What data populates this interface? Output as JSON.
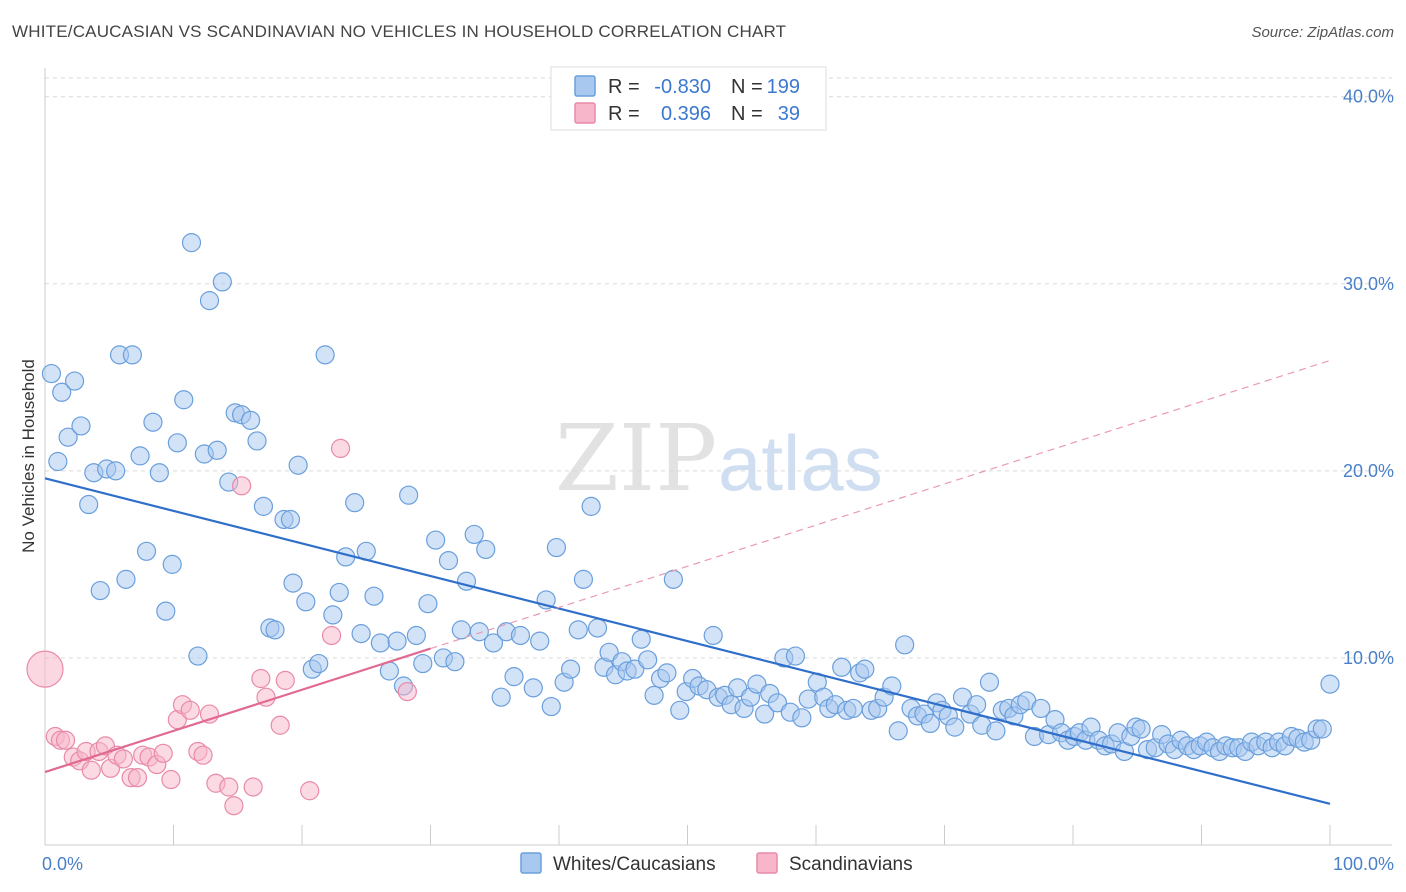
{
  "chart_data": {
    "type": "scatter",
    "title": "WHITE/CAUCASIAN VS SCANDINAVIAN NO VEHICLES IN HOUSEHOLD CORRELATION CHART",
    "source": "Source: ZipAtlas.com",
    "watermark": {
      "zip": "ZIP",
      "atlas": "atlas"
    },
    "ylabel": "No Vehicles in Household",
    "xlim": [
      0,
      100
    ],
    "ylim": [
      0,
      41
    ],
    "x_tick_labels": [
      {
        "value": 0,
        "label": "0.0%"
      },
      {
        "value": 100,
        "label": "100.0%"
      }
    ],
    "y_tick_labels": [
      {
        "value": 10,
        "label": "10.0%"
      },
      {
        "value": 20,
        "label": "20.0%"
      },
      {
        "value": 30,
        "label": "30.0%"
      },
      {
        "value": 40,
        "label": "40.0%"
      }
    ],
    "grid": true,
    "legend": {
      "position": "top-center",
      "entries": [
        {
          "r_label": "R =",
          "r_value": "-0.830",
          "n_label": "N =",
          "n_value": "199"
        },
        {
          "r_label": "R =",
          "r_value": "0.396",
          "n_label": "N =",
          "n_value": "39"
        }
      ]
    },
    "series": [
      {
        "name": "Whites/Caucasians",
        "color": "#a8c8f0",
        "stroke": "#6a9fdc",
        "trend": {
          "x": [
            0,
            100
          ],
          "y": [
            19.6,
            2.2
          ],
          "color": "#2f6fc9"
        },
        "points": [
          [
            0.5,
            25.2
          ],
          [
            1.0,
            20.5
          ],
          [
            1.3,
            24.2
          ],
          [
            1.8,
            21.8
          ],
          [
            2.3,
            24.8
          ],
          [
            2.8,
            22.4
          ],
          [
            3.4,
            18.2
          ],
          [
            3.8,
            19.9
          ],
          [
            4.3,
            13.6
          ],
          [
            4.8,
            20.1
          ],
          [
            5.5,
            20.0
          ],
          [
            5.8,
            26.2
          ],
          [
            6.3,
            14.2
          ],
          [
            6.8,
            26.2
          ],
          [
            7.4,
            20.8
          ],
          [
            7.9,
            15.7
          ],
          [
            8.4,
            22.6
          ],
          [
            8.9,
            19.9
          ],
          [
            9.4,
            12.5
          ],
          [
            9.9,
            15.0
          ],
          [
            10.3,
            21.5
          ],
          [
            10.8,
            23.8
          ],
          [
            11.4,
            32.2
          ],
          [
            11.9,
            10.1
          ],
          [
            12.4,
            20.9
          ],
          [
            12.8,
            29.1
          ],
          [
            13.4,
            21.1
          ],
          [
            13.8,
            30.1
          ],
          [
            14.3,
            19.4
          ],
          [
            14.8,
            23.1
          ],
          [
            15.3,
            23.0
          ],
          [
            16.0,
            22.7
          ],
          [
            16.5,
            21.6
          ],
          [
            17.0,
            18.1
          ],
          [
            17.5,
            11.6
          ],
          [
            17.9,
            11.5
          ],
          [
            18.6,
            17.4
          ],
          [
            19.1,
            17.4
          ],
          [
            19.3,
            14.0
          ],
          [
            19.7,
            20.3
          ],
          [
            20.3,
            13.0
          ],
          [
            20.8,
            9.4
          ],
          [
            21.3,
            9.7
          ],
          [
            21.8,
            26.2
          ],
          [
            22.4,
            12.3
          ],
          [
            22.9,
            13.5
          ],
          [
            23.4,
            15.4
          ],
          [
            24.1,
            18.3
          ],
          [
            24.6,
            11.3
          ],
          [
            25.0,
            15.7
          ],
          [
            25.6,
            13.3
          ],
          [
            26.1,
            10.8
          ],
          [
            26.8,
            9.3
          ],
          [
            27.4,
            10.9
          ],
          [
            27.9,
            8.5
          ],
          [
            28.3,
            18.7
          ],
          [
            28.9,
            11.2
          ],
          [
            29.4,
            9.7
          ],
          [
            29.8,
            12.9
          ],
          [
            30.4,
            16.3
          ],
          [
            31.0,
            10.0
          ],
          [
            31.4,
            15.2
          ],
          [
            31.9,
            9.8
          ],
          [
            32.4,
            11.5
          ],
          [
            32.8,
            14.1
          ],
          [
            33.4,
            16.6
          ],
          [
            33.8,
            11.4
          ],
          [
            34.3,
            15.8
          ],
          [
            34.9,
            10.8
          ],
          [
            35.5,
            7.9
          ],
          [
            35.9,
            11.4
          ],
          [
            36.5,
            9.0
          ],
          [
            37.0,
            11.2
          ],
          [
            38.0,
            8.4
          ],
          [
            38.5,
            10.9
          ],
          [
            39.0,
            13.1
          ],
          [
            39.4,
            7.4
          ],
          [
            39.8,
            15.9
          ],
          [
            40.4,
            8.7
          ],
          [
            40.9,
            9.4
          ],
          [
            41.5,
            11.5
          ],
          [
            41.9,
            14.2
          ],
          [
            42.5,
            18.1
          ],
          [
            43.0,
            11.6
          ],
          [
            43.5,
            9.5
          ],
          [
            43.9,
            10.3
          ],
          [
            44.4,
            9.1
          ],
          [
            44.9,
            9.8
          ],
          [
            45.3,
            9.3
          ],
          [
            45.9,
            9.4
          ],
          [
            46.4,
            11.0
          ],
          [
            46.9,
            9.9
          ],
          [
            47.4,
            8.0
          ],
          [
            47.9,
            8.9
          ],
          [
            48.4,
            9.2
          ],
          [
            48.9,
            14.2
          ],
          [
            49.4,
            7.2
          ],
          [
            49.9,
            8.2
          ],
          [
            50.4,
            8.9
          ],
          [
            50.9,
            8.5
          ],
          [
            51.5,
            8.3
          ],
          [
            52.0,
            11.2
          ],
          [
            52.4,
            7.9
          ],
          [
            52.9,
            8.0
          ],
          [
            53.4,
            7.5
          ],
          [
            53.9,
            8.4
          ],
          [
            54.4,
            7.3
          ],
          [
            54.9,
            7.9
          ],
          [
            55.4,
            8.6
          ],
          [
            56.0,
            7.0
          ],
          [
            56.4,
            8.1
          ],
          [
            57.0,
            7.6
          ],
          [
            57.5,
            10.0
          ],
          [
            58.0,
            7.1
          ],
          [
            58.4,
            10.1
          ],
          [
            58.9,
            6.8
          ],
          [
            59.4,
            7.8
          ],
          [
            60.1,
            8.7
          ],
          [
            60.6,
            7.9
          ],
          [
            61.0,
            7.3
          ],
          [
            61.5,
            7.5
          ],
          [
            62.0,
            9.5
          ],
          [
            62.4,
            7.2
          ],
          [
            62.9,
            7.3
          ],
          [
            63.4,
            9.2
          ],
          [
            63.8,
            9.4
          ],
          [
            64.3,
            7.2
          ],
          [
            64.8,
            7.3
          ],
          [
            65.3,
            7.9
          ],
          [
            65.9,
            8.5
          ],
          [
            66.4,
            6.1
          ],
          [
            66.9,
            10.7
          ],
          [
            67.4,
            7.3
          ],
          [
            67.9,
            6.9
          ],
          [
            68.4,
            7.0
          ],
          [
            68.9,
            6.5
          ],
          [
            69.4,
            7.6
          ],
          [
            69.8,
            7.2
          ],
          [
            70.3,
            6.9
          ],
          [
            70.8,
            6.3
          ],
          [
            71.4,
            7.9
          ],
          [
            72.0,
            7.0
          ],
          [
            72.5,
            7.5
          ],
          [
            72.9,
            6.4
          ],
          [
            73.5,
            8.7
          ],
          [
            74.0,
            6.1
          ],
          [
            74.5,
            7.2
          ],
          [
            75.0,
            7.3
          ],
          [
            75.4,
            6.9
          ],
          [
            75.9,
            7.5
          ],
          [
            76.4,
            7.7
          ],
          [
            77.0,
            5.8
          ],
          [
            77.5,
            7.3
          ],
          [
            78.1,
            5.9
          ],
          [
            78.6,
            6.7
          ],
          [
            79.1,
            6.0
          ],
          [
            79.6,
            5.6
          ],
          [
            80.1,
            5.8
          ],
          [
            80.5,
            6.0
          ],
          [
            81.0,
            5.6
          ],
          [
            81.4,
            6.3
          ],
          [
            82.0,
            5.6
          ],
          [
            82.5,
            5.3
          ],
          [
            83.0,
            5.4
          ],
          [
            83.5,
            6.0
          ],
          [
            84.0,
            5.0
          ],
          [
            84.5,
            5.8
          ],
          [
            84.9,
            6.3
          ],
          [
            85.3,
            6.2
          ],
          [
            85.8,
            5.1
          ],
          [
            86.4,
            5.2
          ],
          [
            86.9,
            5.9
          ],
          [
            87.4,
            5.4
          ],
          [
            87.9,
            5.1
          ],
          [
            88.4,
            5.6
          ],
          [
            88.9,
            5.3
          ],
          [
            89.4,
            5.1
          ],
          [
            89.9,
            5.3
          ],
          [
            90.4,
            5.5
          ],
          [
            90.9,
            5.2
          ],
          [
            91.4,
            5.0
          ],
          [
            91.9,
            5.3
          ],
          [
            92.4,
            5.2
          ],
          [
            92.9,
            5.2
          ],
          [
            93.4,
            5.0
          ],
          [
            93.9,
            5.5
          ],
          [
            94.4,
            5.3
          ],
          [
            95.0,
            5.5
          ],
          [
            95.5,
            5.2
          ],
          [
            96.0,
            5.5
          ],
          [
            96.5,
            5.3
          ],
          [
            97.0,
            5.8
          ],
          [
            97.5,
            5.7
          ],
          [
            98.0,
            5.5
          ],
          [
            98.5,
            5.6
          ],
          [
            99.0,
            6.2
          ],
          [
            99.4,
            6.2
          ],
          [
            100.0,
            8.6
          ]
        ]
      },
      {
        "name": "Scandinavians",
        "color": "#f7b6ca",
        "stroke": "#e98aa8",
        "trend": {
          "x": [
            0,
            30
          ],
          "y": [
            3.9,
            10.5
          ],
          "color": "#e06a92"
        },
        "trend_extension": {
          "x": [
            30,
            100
          ],
          "y": [
            10.5,
            25.9
          ],
          "color": "#e99ab4"
        },
        "points": [
          [
            0.8,
            5.8
          ],
          [
            1.2,
            5.6
          ],
          [
            1.6,
            5.6
          ],
          [
            2.2,
            4.7
          ],
          [
            2.7,
            4.5
          ],
          [
            3.2,
            5.0
          ],
          [
            3.6,
            4.0
          ],
          [
            4.2,
            5.0
          ],
          [
            4.7,
            5.3
          ],
          [
            5.1,
            4.1
          ],
          [
            5.6,
            4.8
          ],
          [
            6.1,
            4.6
          ],
          [
            6.7,
            3.6
          ],
          [
            7.2,
            3.6
          ],
          [
            7.6,
            4.8
          ],
          [
            8.1,
            4.7
          ],
          [
            8.7,
            4.3
          ],
          [
            9.2,
            4.9
          ],
          [
            9.8,
            3.5
          ],
          [
            10.3,
            6.7
          ],
          [
            10.7,
            7.5
          ],
          [
            11.3,
            7.2
          ],
          [
            11.9,
            5.0
          ],
          [
            12.3,
            4.8
          ],
          [
            12.8,
            7.0
          ],
          [
            13.3,
            3.3
          ],
          [
            14.3,
            3.1
          ],
          [
            14.7,
            2.1
          ],
          [
            15.3,
            19.2
          ],
          [
            16.2,
            3.1
          ],
          [
            16.8,
            8.9
          ],
          [
            17.2,
            7.9
          ],
          [
            18.3,
            6.4
          ],
          [
            18.7,
            8.8
          ],
          [
            20.6,
            2.9
          ],
          [
            22.3,
            11.2
          ],
          [
            23.0,
            21.2
          ],
          [
            28.2,
            8.2
          ],
          [
            0.0,
            9.4
          ]
        ]
      }
    ]
  }
}
